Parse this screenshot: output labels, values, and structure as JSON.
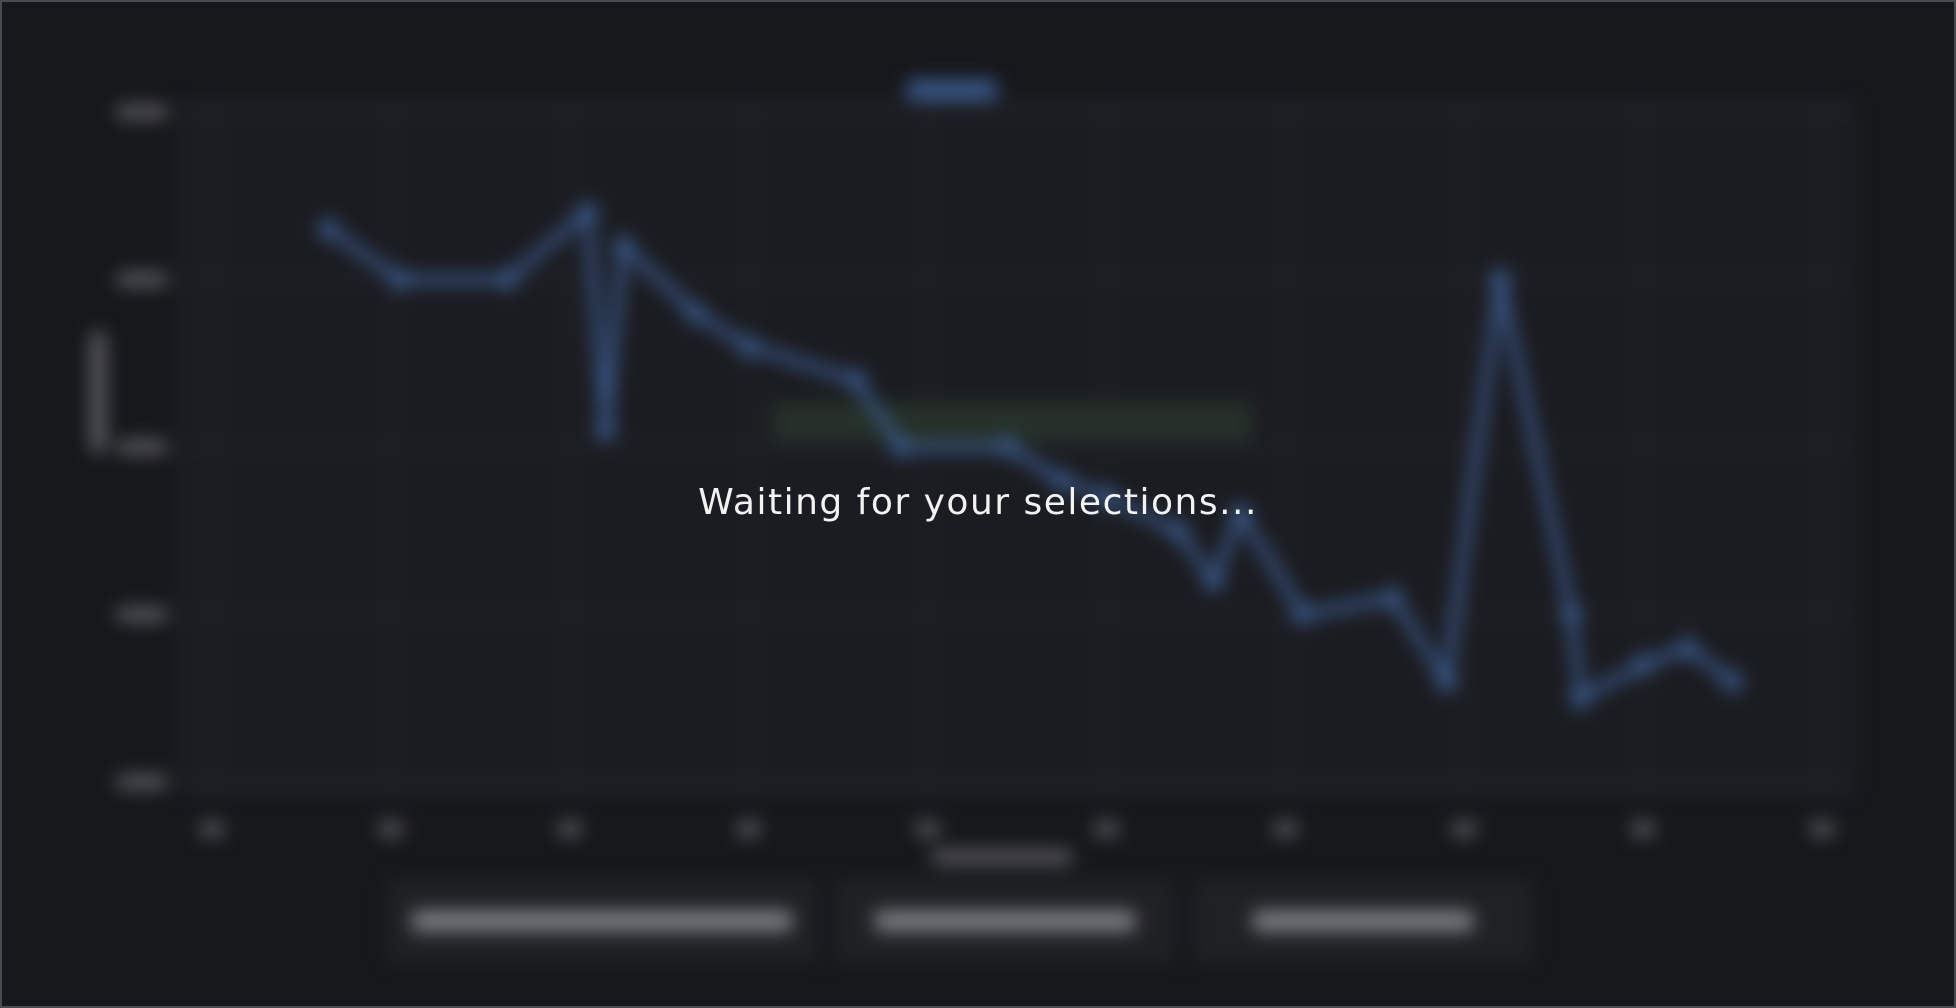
{
  "overlay": {
    "message": "Waiting for your selections..."
  },
  "chart_data": {
    "type": "line",
    "x": [
      1.3,
      2.1,
      3.3,
      4.2,
      4.4,
      4.6,
      5.4,
      6.0,
      7.2,
      7.7,
      8.9,
      9.5,
      10.0,
      10.8,
      11.2,
      11.5,
      12.2,
      13.2,
      13.8,
      14.4,
      15.2,
      15.3,
      16.0,
      16.5,
      17.0
    ],
    "y": [
      3.3,
      3.0,
      3.0,
      3.4,
      2.1,
      3.2,
      2.8,
      2.6,
      2.4,
      2.0,
      2.0,
      1.8,
      1.7,
      1.5,
      1.2,
      1.6,
      1.0,
      1.1,
      0.6,
      3.0,
      1.0,
      0.5,
      0.7,
      0.8,
      0.6
    ],
    "xlim": [
      0,
      18
    ],
    "ylim": [
      0,
      4
    ],
    "x_ticks": [
      0,
      2,
      4,
      6,
      8,
      10,
      12,
      14,
      16,
      18
    ],
    "y_ticks": [
      0,
      1,
      2,
      3,
      4
    ],
    "grid": true,
    "series_color": "#3a5a8c"
  },
  "buttons_count": 3
}
